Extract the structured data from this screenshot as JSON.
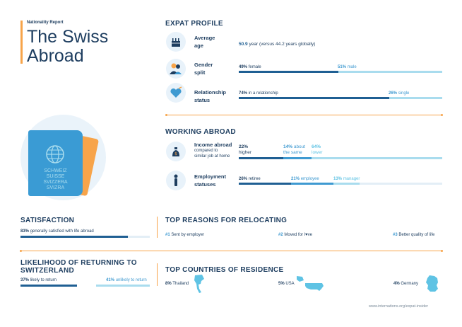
{
  "header": {
    "kicker": "Nationality Report",
    "title_line1": "The Swiss",
    "title_line2": "Abroad"
  },
  "passport": {
    "lines": [
      "SCHWEIZ",
      "SUISSE",
      "SVIZZERA",
      "SVIZRA"
    ],
    "icon": "globe-icon"
  },
  "expat_profile": {
    "heading": "EXPAT PROFILE",
    "age": {
      "label_1": "Average",
      "label_2": "age",
      "value": "50.9",
      "unit": "year",
      "note": "(versus 44.2 years globally)",
      "icon": "cake-icon"
    },
    "gender": {
      "label_1": "Gender",
      "label_2": "split",
      "female_pct": "49%",
      "female_label": "female",
      "male_pct": "51%",
      "male_label": "male",
      "female_share": 0.49,
      "icon": "people-icon"
    },
    "relationship": {
      "label_1": "Relationship",
      "label_2": "status",
      "rel_pct": "74%",
      "rel_label": "in a relationship",
      "single_pct": "26%",
      "single_label": "single",
      "rel_share": 0.74,
      "icon": "heart-icon"
    }
  },
  "working_abroad": {
    "heading": "WORKING ABROAD",
    "income": {
      "label_1": "Income abroad",
      "label_2": "compared to",
      "label_3": "similar job at home",
      "higher_pct": "22%",
      "higher_label": "higher",
      "same_pct": "14%",
      "same_label_1": "about",
      "same_label_2": "the same",
      "lower_pct": "64%",
      "lower_label": "lower",
      "icon": "money-bag-icon"
    },
    "employment": {
      "label_1": "Employment",
      "label_2": "statuses",
      "retiree_pct": "26%",
      "retiree_label": "retiree",
      "employee_pct": "21%",
      "employee_label": "employee",
      "manager_pct": "13%",
      "manager_label": "manager",
      "icon": "person-icon"
    }
  },
  "satisfaction": {
    "heading": "SATISFACTION",
    "pct": "83%",
    "label": "generally satisfied with life abroad",
    "share": 0.83
  },
  "reasons": {
    "heading": "TOP REASONS FOR RELOCATING",
    "items": [
      {
        "rank": "#1",
        "label": "Sent by employer"
      },
      {
        "rank": "#2",
        "label_a": "Moved for l",
        "heart": "♥",
        "label_b": "ve"
      },
      {
        "rank": "#3",
        "label": "Better quality of life"
      }
    ]
  },
  "returning": {
    "heading_1": "LIKELIHOOD OF RETURNING TO",
    "heading_2": "SWITZERLAND",
    "likely_pct": "37%",
    "likely_label": "likely to return",
    "unlikely_pct": "41%",
    "unlikely_label": "unlikely to return"
  },
  "countries": {
    "heading": "TOP COUNTRIES OF RESIDENCE",
    "items": [
      {
        "pct": "8%",
        "name": "Thailand"
      },
      {
        "pct": "5%",
        "name": "USA"
      },
      {
        "pct": "4%",
        "name": "Germany"
      }
    ]
  },
  "footer": {
    "url": "www.internations.org/expat-insider"
  },
  "colors": {
    "navy": "#1d3d5f",
    "blue": "#3f9ad1",
    "light_blue": "#a9dcee",
    "orange": "#f7a44a",
    "passport": "#3a9bd4"
  }
}
